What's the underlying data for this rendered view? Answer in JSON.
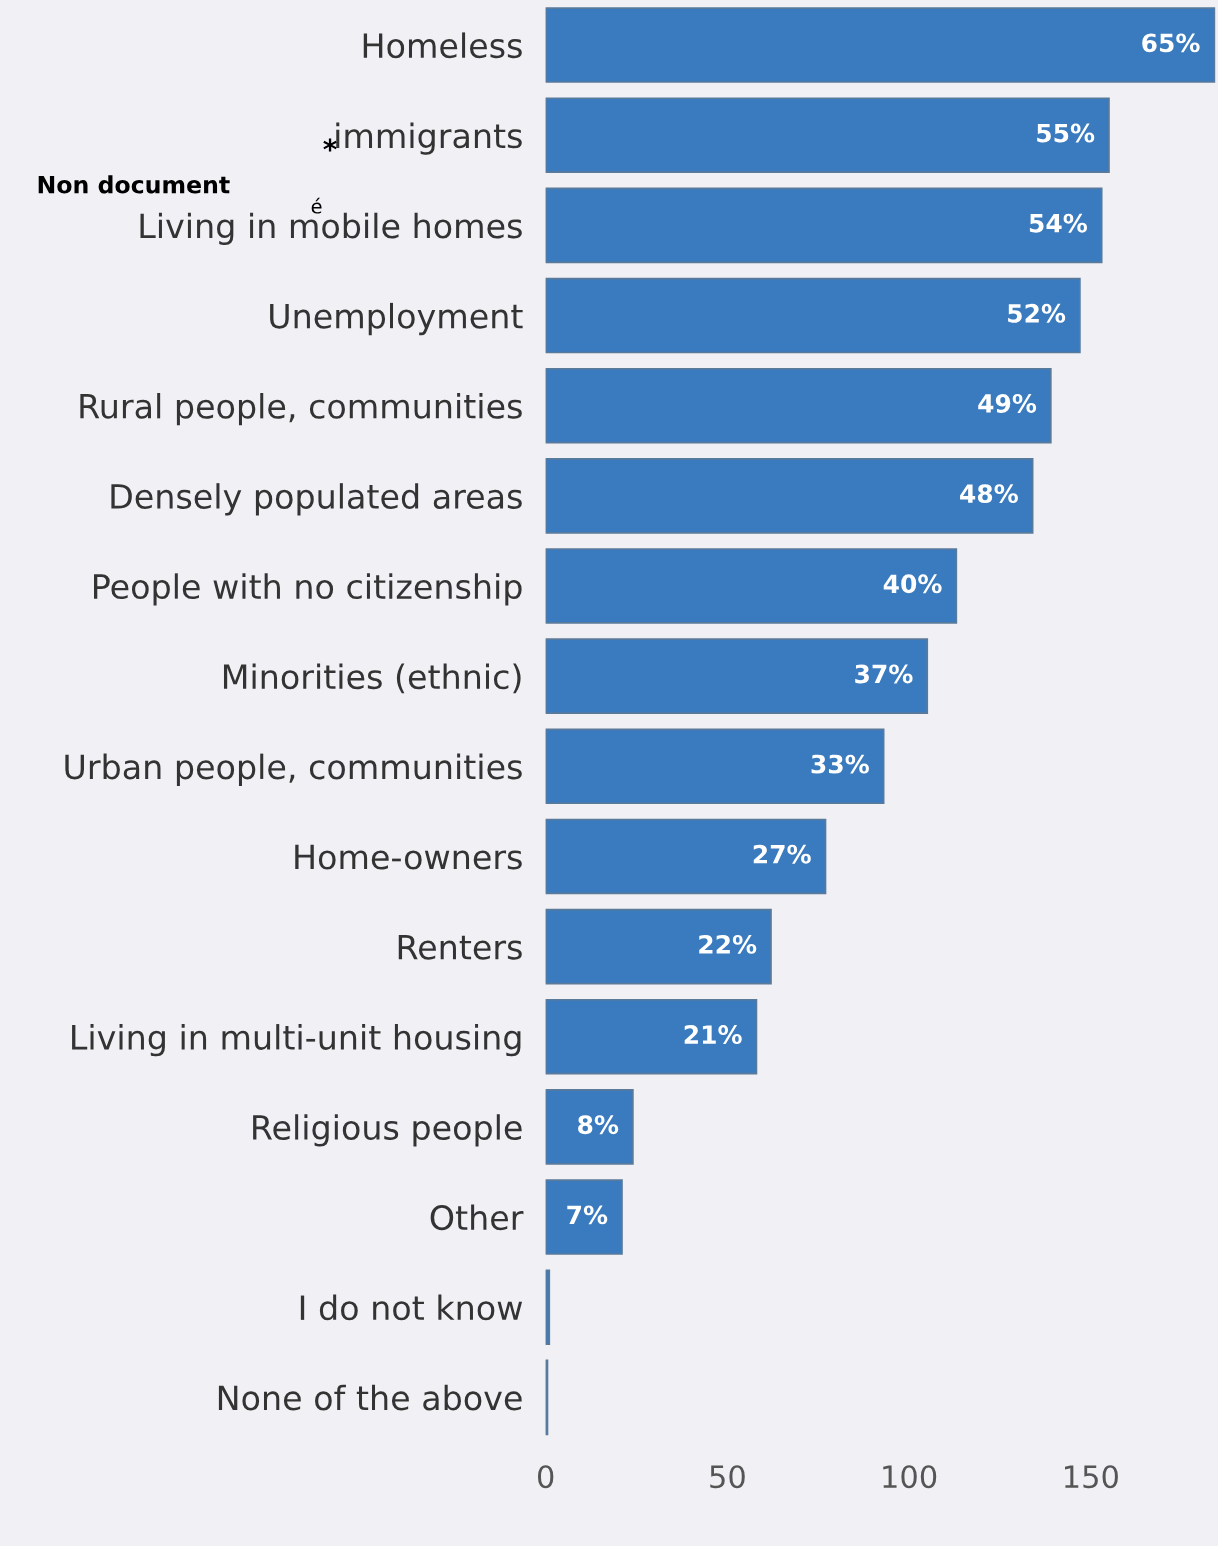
{
  "chart_data": {
    "type": "bar",
    "orientation": "horizontal",
    "categories": [
      "Homeless",
      "immigrants",
      "Living in mobile homes",
      "Unemployment",
      "Rural people, communities",
      "Densely populated areas",
      "People with no citizenship",
      "Minorities (ethnic)",
      "Urban people, communities",
      "Home-owners",
      "Renters",
      "Living in multi-unit housing",
      "Religious people",
      "Other",
      "I do not know",
      "None of the above"
    ],
    "values": [
      184,
      155,
      153,
      147,
      139,
      134,
      113,
      105,
      93,
      77,
      62,
      58,
      24,
      21,
      1,
      0.5
    ],
    "color": "#3a7bbf",
    "xlim": [
      0,
      185
    ],
    "xticks": [
      0,
      50,
      100,
      150
    ],
    "grid": false,
    "annotations": [
      "Non document",
      "*",
      "é",
      {
        "text": "65%",
        "x": 184,
        "y": "Homeless"
      },
      {
        "text": "55%",
        "x": 155,
        "y": "immigrants"
      },
      {
        "text": "54%",
        "x": 153,
        "y": "Living in mobile homes"
      },
      {
        "text": "52%",
        "x": 147,
        "y": "Unemployment"
      },
      {
        "text": "49%",
        "x": 139,
        "y": "Rural people, communities"
      },
      {
        "text": "48%",
        "x": 134,
        "y": "Densely populated areas"
      },
      {
        "text": "40%",
        "x": 113,
        "y": "People with no citizenship"
      },
      {
        "text": "37%",
        "x": 105,
        "y": "Minorities (ethnic)"
      },
      {
        "text": "33%",
        "x": 93,
        "y": "Urban people, communities"
      },
      {
        "text": "27%",
        "x": 77,
        "y": "Home-owners"
      },
      {
        "text": "22%",
        "x": 62,
        "y": "Renters"
      },
      {
        "text": "21%",
        "x": 58,
        "y": "Living in multi-unit housing"
      },
      {
        "text": "8%",
        "x": 24,
        "y": "Religious people"
      },
      {
        "text": "7%",
        "x": 21,
        "y": "Other"
      }
    ]
  }
}
